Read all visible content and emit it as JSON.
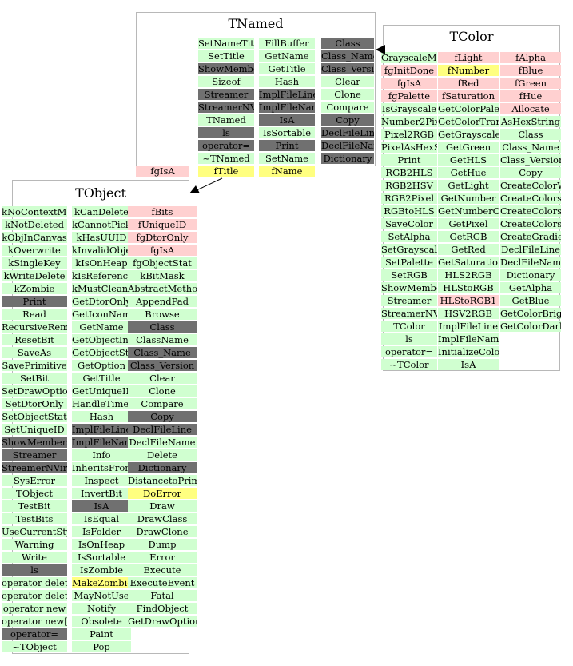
{
  "colors": {
    "method": "#d0ffd0",
    "inherited": "#707070",
    "member": "#ffd0d0",
    "highlight": "#ffff80"
  },
  "tnamed": {
    "title": "TNamed",
    "col1": [
      {
        "t": "SetNameTitle",
        "c": "g"
      },
      {
        "t": "SetTitle",
        "c": "g"
      },
      {
        "t": "ShowMembers",
        "c": "d"
      },
      {
        "t": "Sizeof",
        "c": "g"
      },
      {
        "t": "Streamer",
        "c": "d"
      },
      {
        "t": "StreamerNVirtual",
        "c": "d"
      },
      {
        "t": "TNamed",
        "c": "g"
      },
      {
        "t": "ls",
        "c": "d"
      },
      {
        "t": "operator=",
        "c": "d"
      },
      {
        "t": "~TNamed",
        "c": "g"
      }
    ],
    "col2": [
      {
        "t": "FillBuffer",
        "c": "g"
      },
      {
        "t": "GetName",
        "c": "g"
      },
      {
        "t": "GetTitle",
        "c": "g"
      },
      {
        "t": "Hash",
        "c": "g"
      },
      {
        "t": "ImplFileLine",
        "c": "d"
      },
      {
        "t": "ImplFileName",
        "c": "d"
      },
      {
        "t": "IsA",
        "c": "d"
      },
      {
        "t": "IsSortable",
        "c": "g"
      },
      {
        "t": "Print",
        "c": "d"
      },
      {
        "t": "SetName",
        "c": "g"
      }
    ],
    "col3": [
      {
        "t": "Class",
        "c": "d"
      },
      {
        "t": "Class_Name",
        "c": "d"
      },
      {
        "t": "Class_Version",
        "c": "d"
      },
      {
        "t": "Clear",
        "c": "g"
      },
      {
        "t": "Clone",
        "c": "g"
      },
      {
        "t": "Compare",
        "c": "g"
      },
      {
        "t": "Copy",
        "c": "d"
      },
      {
        "t": "DeclFileLine",
        "c": "d"
      },
      {
        "t": "DeclFileName",
        "c": "d"
      },
      {
        "t": "Dictionary",
        "c": "d"
      }
    ],
    "members": [
      {
        "t": "fTitle",
        "c": "y"
      },
      {
        "t": "fName",
        "c": "y"
      }
    ],
    "outside": {
      "t": "fgIsA",
      "c": "p"
    }
  },
  "tcolor": {
    "title": "TColor",
    "col1": [
      {
        "t": "GrayscaleMode",
        "c": "g"
      },
      {
        "t": "fgInitDone",
        "c": "p"
      },
      {
        "t": "fgIsA",
        "c": "p"
      },
      {
        "t": "fgPalette",
        "c": "p"
      },
      {
        "t": "IsGrayscale",
        "c": "g"
      },
      {
        "t": "Number2Pixel",
        "c": "g"
      },
      {
        "t": "Pixel2RGB",
        "c": "g"
      },
      {
        "t": "PixelAsHexString",
        "c": "g"
      },
      {
        "t": "Print",
        "c": "g"
      },
      {
        "t": "RGB2HLS",
        "c": "g"
      },
      {
        "t": "RGB2HSV",
        "c": "g"
      },
      {
        "t": "RGB2Pixel",
        "c": "g"
      },
      {
        "t": "RGBtoHLS",
        "c": "g"
      },
      {
        "t": "SaveColor",
        "c": "g"
      },
      {
        "t": "SetAlpha",
        "c": "g"
      },
      {
        "t": "SetGrayscale",
        "c": "g"
      },
      {
        "t": "SetPalette",
        "c": "g"
      },
      {
        "t": "SetRGB",
        "c": "g"
      },
      {
        "t": "ShowMembers",
        "c": "g"
      },
      {
        "t": "Streamer",
        "c": "g"
      },
      {
        "t": "StreamerNVirtual",
        "c": "g"
      },
      {
        "t": "TColor",
        "c": "g"
      },
      {
        "t": "ls",
        "c": "g"
      },
      {
        "t": "operator=",
        "c": "g"
      },
      {
        "t": "~TColor",
        "c": "g"
      }
    ],
    "col2": [
      {
        "t": "fLight",
        "c": "p"
      },
      {
        "t": "fNumber",
        "c": "y"
      },
      {
        "t": "fRed",
        "c": "p"
      },
      {
        "t": "fSaturation",
        "c": "p"
      },
      {
        "t": "GetColorPalette",
        "c": "g"
      },
      {
        "t": "GetColorTransparent",
        "c": "g"
      },
      {
        "t": "GetGrayscale",
        "c": "g"
      },
      {
        "t": "GetGreen",
        "c": "g"
      },
      {
        "t": "GetHLS",
        "c": "g"
      },
      {
        "t": "GetHue",
        "c": "g"
      },
      {
        "t": "GetLight",
        "c": "g"
      },
      {
        "t": "GetNumber",
        "c": "g"
      },
      {
        "t": "GetNumberOfColors",
        "c": "g"
      },
      {
        "t": "GetPixel",
        "c": "g"
      },
      {
        "t": "GetRGB",
        "c": "g"
      },
      {
        "t": "GetRed",
        "c": "g"
      },
      {
        "t": "GetSaturation",
        "c": "g"
      },
      {
        "t": "HLS2RGB",
        "c": "g"
      },
      {
        "t": "HLStoRGB",
        "c": "g"
      },
      {
        "t": "HLStoRGB1",
        "c": "p"
      },
      {
        "t": "HSV2RGB",
        "c": "g"
      },
      {
        "t": "ImplFileLine",
        "c": "g"
      },
      {
        "t": "ImplFileName",
        "c": "g"
      },
      {
        "t": "InitializeColors",
        "c": "g"
      },
      {
        "t": "IsA",
        "c": "g"
      }
    ],
    "col3": [
      {
        "t": "fAlpha",
        "c": "p"
      },
      {
        "t": "fBlue",
        "c": "p"
      },
      {
        "t": "fGreen",
        "c": "p"
      },
      {
        "t": "fHue",
        "c": "p"
      },
      {
        "t": "Allocate",
        "c": "p"
      },
      {
        "t": "AsHexString",
        "c": "g"
      },
      {
        "t": "Class",
        "c": "g"
      },
      {
        "t": "Class_Name",
        "c": "g"
      },
      {
        "t": "Class_Version",
        "c": "g"
      },
      {
        "t": "Copy",
        "c": "g"
      },
      {
        "t": "CreateColorWheel",
        "c": "g"
      },
      {
        "t": "CreateColorsCircle",
        "c": "g"
      },
      {
        "t": "CreateColorsGray",
        "c": "g"
      },
      {
        "t": "CreateColorsRectangle",
        "c": "g"
      },
      {
        "t": "CreateGradientColorTable",
        "c": "g"
      },
      {
        "t": "DeclFileLine",
        "c": "g"
      },
      {
        "t": "DeclFileName",
        "c": "g"
      },
      {
        "t": "Dictionary",
        "c": "g"
      },
      {
        "t": "GetAlpha",
        "c": "g"
      },
      {
        "t": "GetBlue",
        "c": "g"
      },
      {
        "t": "GetColorBright",
        "c": "g"
      },
      {
        "t": "GetColorDark",
        "c": "g"
      }
    ]
  },
  "tobject": {
    "title": "TObject",
    "col1": [
      {
        "t": "kNoContextMenu",
        "c": "g"
      },
      {
        "t": "kNotDeleted",
        "c": "g"
      },
      {
        "t": "kObjInCanvas",
        "c": "g"
      },
      {
        "t": "kOverwrite",
        "c": "g"
      },
      {
        "t": "kSingleKey",
        "c": "g"
      },
      {
        "t": "kWriteDelete",
        "c": "g"
      },
      {
        "t": "kZombie",
        "c": "g"
      },
      {
        "t": "Print",
        "c": "d"
      },
      {
        "t": "Read",
        "c": "g"
      },
      {
        "t": "RecursiveRemove",
        "c": "g"
      },
      {
        "t": "ResetBit",
        "c": "g"
      },
      {
        "t": "SaveAs",
        "c": "g"
      },
      {
        "t": "SavePrimitive",
        "c": "g"
      },
      {
        "t": "SetBit",
        "c": "g"
      },
      {
        "t": "SetDrawOption",
        "c": "g"
      },
      {
        "t": "SetDtorOnly",
        "c": "g"
      },
      {
        "t": "SetObjectStat",
        "c": "g"
      },
      {
        "t": "SetUniqueID",
        "c": "g"
      },
      {
        "t": "ShowMembers",
        "c": "d"
      },
      {
        "t": "Streamer",
        "c": "d"
      },
      {
        "t": "StreamerNVirtual",
        "c": "d"
      },
      {
        "t": "SysError",
        "c": "g"
      },
      {
        "t": "TObject",
        "c": "g"
      },
      {
        "t": "TestBit",
        "c": "g"
      },
      {
        "t": "TestBits",
        "c": "g"
      },
      {
        "t": "UseCurrentStyle",
        "c": "g"
      },
      {
        "t": "Warning",
        "c": "g"
      },
      {
        "t": "Write",
        "c": "g"
      },
      {
        "t": "ls",
        "c": "d"
      },
      {
        "t": "operator delete",
        "c": "g"
      },
      {
        "t": "operator delete[]",
        "c": "g"
      },
      {
        "t": "operator new",
        "c": "g"
      },
      {
        "t": "operator new[]",
        "c": "g"
      },
      {
        "t": "operator=",
        "c": "d"
      },
      {
        "t": "~TObject",
        "c": "g"
      }
    ],
    "col2": [
      {
        "t": "kCanDelete",
        "c": "g"
      },
      {
        "t": "kCannotPick",
        "c": "g"
      },
      {
        "t": "kHasUUID",
        "c": "g"
      },
      {
        "t": "kInvalidObject",
        "c": "g"
      },
      {
        "t": "kIsOnHeap",
        "c": "g"
      },
      {
        "t": "kIsReferenced",
        "c": "g"
      },
      {
        "t": "kMustCleanup",
        "c": "g"
      },
      {
        "t": "GetDtorOnly",
        "c": "g"
      },
      {
        "t": "GetIconName",
        "c": "g"
      },
      {
        "t": "GetName",
        "c": "g"
      },
      {
        "t": "GetObjectInfo",
        "c": "g"
      },
      {
        "t": "GetObjectStat",
        "c": "g"
      },
      {
        "t": "GetOption",
        "c": "g"
      },
      {
        "t": "GetTitle",
        "c": "g"
      },
      {
        "t": "GetUniqueID",
        "c": "g"
      },
      {
        "t": "HandleTimer",
        "c": "g"
      },
      {
        "t": "Hash",
        "c": "g"
      },
      {
        "t": "ImplFileLine",
        "c": "d"
      },
      {
        "t": "ImplFileName",
        "c": "d"
      },
      {
        "t": "Info",
        "c": "g"
      },
      {
        "t": "InheritsFrom",
        "c": "g"
      },
      {
        "t": "Inspect",
        "c": "g"
      },
      {
        "t": "InvertBit",
        "c": "g"
      },
      {
        "t": "IsA",
        "c": "d"
      },
      {
        "t": "IsEqual",
        "c": "g"
      },
      {
        "t": "IsFolder",
        "c": "g"
      },
      {
        "t": "IsOnHeap",
        "c": "g"
      },
      {
        "t": "IsSortable",
        "c": "g"
      },
      {
        "t": "IsZombie",
        "c": "g"
      },
      {
        "t": "MakeZombie",
        "c": "y"
      },
      {
        "t": "MayNotUse",
        "c": "g"
      },
      {
        "t": "Notify",
        "c": "g"
      },
      {
        "t": "Obsolete",
        "c": "g"
      },
      {
        "t": "Paint",
        "c": "g"
      },
      {
        "t": "Pop",
        "c": "g"
      }
    ],
    "col3": [
      {
        "t": "fBits",
        "c": "p"
      },
      {
        "t": "fUniqueID",
        "c": "p"
      },
      {
        "t": "fgDtorOnly",
        "c": "p"
      },
      {
        "t": "fgIsA",
        "c": "p"
      },
      {
        "t": "fgObjectStat",
        "c": "g"
      },
      {
        "t": "kBitMask",
        "c": "g"
      },
      {
        "t": "AbstractMethod",
        "c": "g"
      },
      {
        "t": "AppendPad",
        "c": "g"
      },
      {
        "t": "Browse",
        "c": "g"
      },
      {
        "t": "Class",
        "c": "d"
      },
      {
        "t": "ClassName",
        "c": "g"
      },
      {
        "t": "Class_Name",
        "c": "d"
      },
      {
        "t": "Class_Version",
        "c": "d"
      },
      {
        "t": "Clear",
        "c": "g"
      },
      {
        "t": "Clone",
        "c": "g"
      },
      {
        "t": "Compare",
        "c": "g"
      },
      {
        "t": "Copy",
        "c": "d"
      },
      {
        "t": "DeclFileLine",
        "c": "d"
      },
      {
        "t": "DeclFileName",
        "c": "g"
      },
      {
        "t": "Delete",
        "c": "g"
      },
      {
        "t": "Dictionary",
        "c": "d"
      },
      {
        "t": "DistancetoPrimitive",
        "c": "g"
      },
      {
        "t": "DoError",
        "c": "y"
      },
      {
        "t": "Draw",
        "c": "g"
      },
      {
        "t": "DrawClass",
        "c": "g"
      },
      {
        "t": "DrawClone",
        "c": "g"
      },
      {
        "t": "Dump",
        "c": "g"
      },
      {
        "t": "Error",
        "c": "g"
      },
      {
        "t": "Execute",
        "c": "g"
      },
      {
        "t": "ExecuteEvent",
        "c": "g"
      },
      {
        "t": "Fatal",
        "c": "g"
      },
      {
        "t": "FindObject",
        "c": "g"
      },
      {
        "t": "GetDrawOption",
        "c": "g"
      }
    ]
  }
}
